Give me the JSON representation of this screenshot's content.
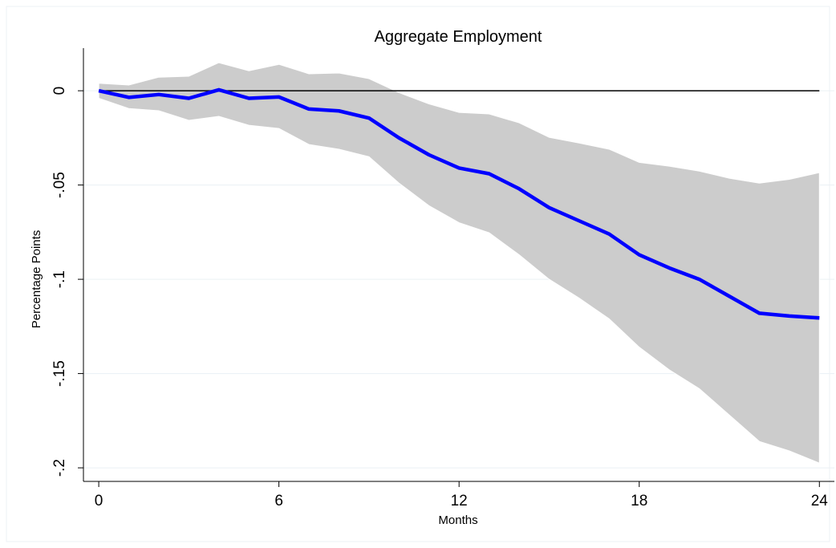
{
  "chart_data": {
    "type": "line",
    "title": "Aggregate Employment",
    "x_label": "Months",
    "y_label": "Percentage Points",
    "x": [
      0,
      1,
      2,
      3,
      4,
      5,
      6,
      7,
      8,
      9,
      10,
      11,
      12,
      13,
      14,
      15,
      16,
      17,
      18,
      19,
      20,
      21,
      22,
      23,
      24
    ],
    "values": [
      0.0,
      -0.0035,
      -0.002,
      -0.004,
      0.0005,
      -0.004,
      -0.0033,
      -0.0097,
      -0.0107,
      -0.0145,
      -0.025,
      -0.034,
      -0.041,
      -0.044,
      -0.052,
      -0.062,
      -0.069,
      -0.076,
      -0.087,
      -0.094,
      -0.1,
      -0.109,
      -0.118,
      -0.1195,
      -0.1205
    ],
    "lower": [
      -0.004,
      -0.0094,
      -0.0106,
      -0.0157,
      -0.0136,
      -0.0183,
      -0.02,
      -0.0285,
      -0.031,
      -0.035,
      -0.049,
      -0.061,
      -0.07,
      -0.0753,
      -0.087,
      -0.1,
      -0.11,
      -0.121,
      -0.136,
      -0.148,
      -0.158,
      -0.172,
      -0.186,
      -0.191,
      -0.1975
    ],
    "upper": [
      0.004,
      0.003,
      0.0072,
      0.0077,
      0.0149,
      0.0106,
      0.014,
      0.009,
      0.0094,
      0.0064,
      -0.001,
      -0.007,
      -0.0115,
      -0.0123,
      -0.017,
      -0.0247,
      -0.0277,
      -0.031,
      -0.038,
      -0.04,
      -0.0426,
      -0.0464,
      -0.049,
      -0.047,
      -0.0434
    ],
    "color": "#0000ff",
    "band_color": "#cccccc",
    "reference_line": 0,
    "xlim": [
      -0.51,
      24.5
    ],
    "ylim": [
      -0.2072,
      0.0226
    ],
    "xticks": [
      0,
      6,
      12,
      18,
      24
    ],
    "yticks": [
      0,
      {
        "value": -0.05,
        "label": "-.05"
      },
      {
        "value": -0.1,
        "label": "-.1"
      },
      {
        "value": -0.15,
        "label": "-.15"
      },
      {
        "value": -0.2,
        "label": "-.2"
      }
    ],
    "grid": true
  }
}
